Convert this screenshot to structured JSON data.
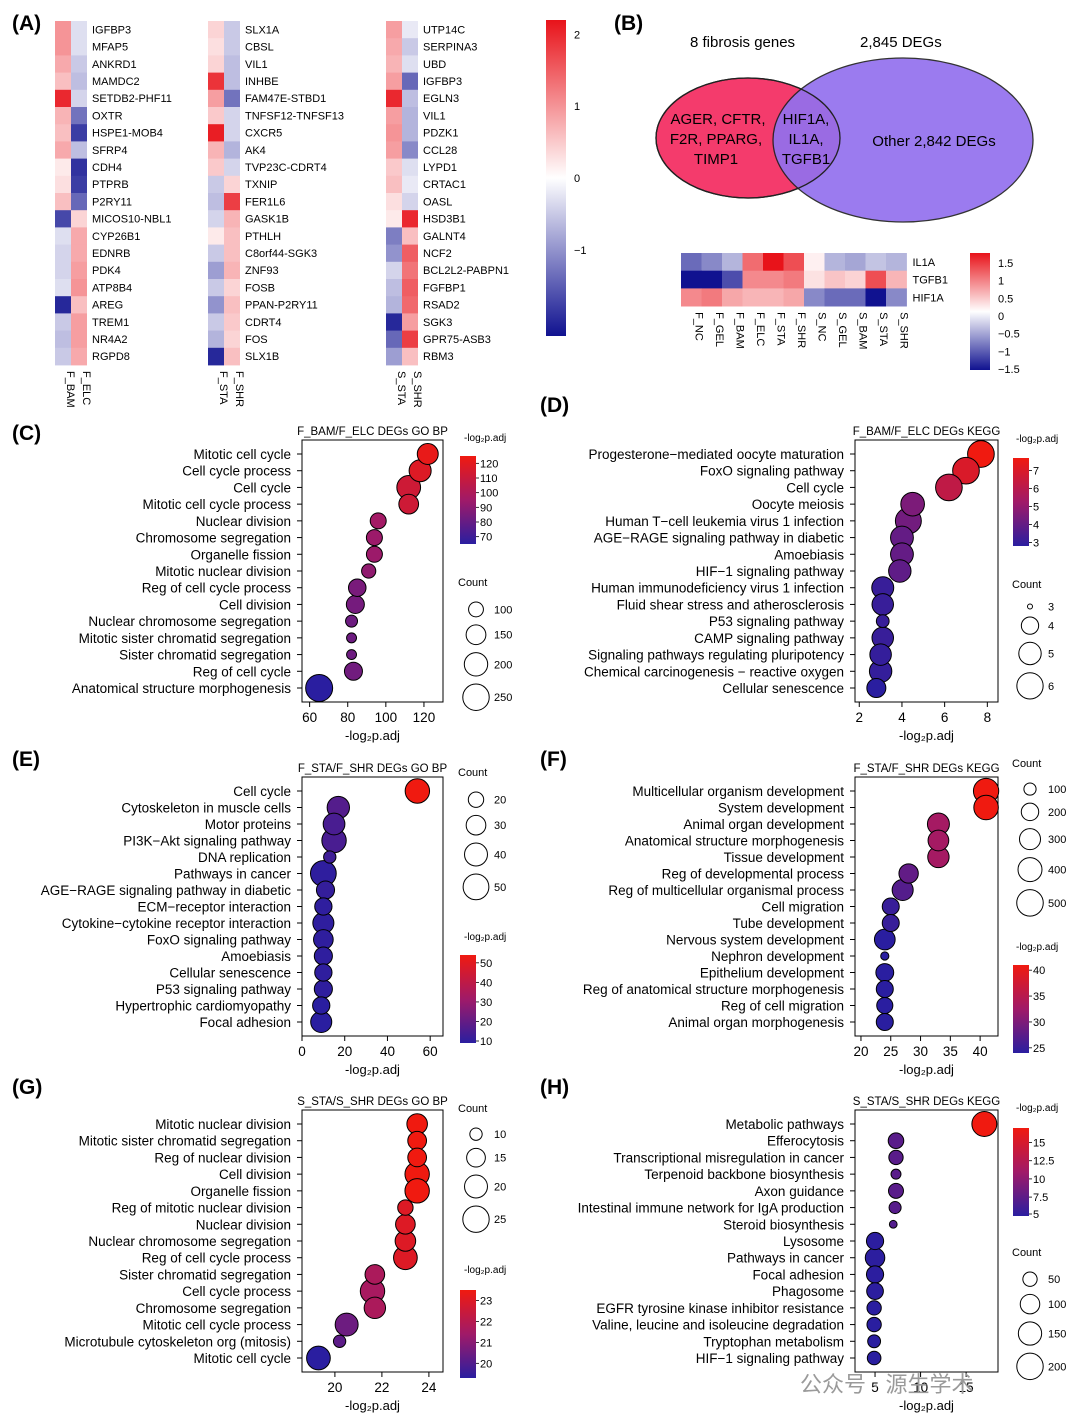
{
  "panel_letters": [
    "(A)",
    "(B)",
    "(C)",
    "(D)",
    "(E)",
    "(F)",
    "(G)",
    "(H)"
  ],
  "watermark": "公众号 · 源生学术",
  "heatmap_A": {
    "colorbar_ticks": [
      2,
      1,
      0,
      -1
    ],
    "colorbar_range": [
      -2.2,
      2.2
    ],
    "blocks": [
      {
        "columns": [
          "F_BAM",
          "F_ELC"
        ],
        "genes": [
          "IGFBP3",
          "MFAP5",
          "ANKRD1",
          "MAMDC2",
          "SETDB2-PHF11",
          "OXTR",
          "HSPE1-MOB4",
          "SFRP4",
          "CDH4",
          "PTPRB",
          "P2RY11",
          "MICOS10-NBL1",
          "CYP26B1",
          "EDNRB",
          "PDK4",
          "ATP8B4",
          "AREG",
          "TREM1",
          "NR4A2",
          "RGPD8"
        ],
        "values": [
          [
            1.0,
            -0.3
          ],
          [
            1.0,
            -0.3
          ],
          [
            0.8,
            -0.5
          ],
          [
            0.6,
            -0.6
          ],
          [
            2.0,
            -0.4
          ],
          [
            0.7,
            -1.3
          ],
          [
            0.6,
            -1.8
          ],
          [
            0.8,
            -0.6
          ],
          [
            0.2,
            -1.9
          ],
          [
            0.3,
            -1.8
          ],
          [
            0.6,
            -1.4
          ],
          [
            -1.7,
            0.4
          ],
          [
            -0.3,
            0.8
          ],
          [
            -0.4,
            0.8
          ],
          [
            -0.4,
            0.9
          ],
          [
            -0.3,
            1.0
          ],
          [
            -2.0,
            0.6
          ],
          [
            -0.5,
            0.9
          ],
          [
            -0.6,
            0.9
          ],
          [
            -0.5,
            0.8
          ]
        ]
      },
      {
        "columns": [
          "F_STA",
          "F_SHR"
        ],
        "genes": [
          "SLX1A",
          "CBSL",
          "VIL1",
          "INHBE",
          "FAM47E-STBD1",
          "TNFSF12-TNFSF13",
          "CXCR5",
          "AK4",
          "TVP23C-CDRT4",
          "TXNIP",
          "FER1L6",
          "GASK1B",
          "PTHLH",
          "C8orf44-SGK3",
          "ZNF93",
          "FOSB",
          "PPAN-P2RY11",
          "CDRT4",
          "FOS",
          "SLX1B"
        ],
        "values": [
          [
            0.4,
            -0.5
          ],
          [
            0.3,
            -0.5
          ],
          [
            0.4,
            -0.6
          ],
          [
            1.9,
            -0.6
          ],
          [
            0.9,
            -1.3
          ],
          [
            0.5,
            -0.4
          ],
          [
            2.1,
            -0.4
          ],
          [
            0.7,
            -0.7
          ],
          [
            0.5,
            -0.4
          ],
          [
            -0.5,
            0.4
          ],
          [
            -0.6,
            1.8
          ],
          [
            -0.4,
            0.7
          ],
          [
            0.2,
            0.6
          ],
          [
            -0.5,
            0.6
          ],
          [
            -0.9,
            0.7
          ],
          [
            -0.5,
            0.4
          ],
          [
            -1.0,
            0.6
          ],
          [
            -0.5,
            0.5
          ],
          [
            -0.7,
            0.4
          ],
          [
            -2.0,
            0.6
          ]
        ]
      },
      {
        "columns": [
          "S_STA",
          "S_SHR"
        ],
        "genes": [
          "UTP14C",
          "SERPINA3",
          "UBD",
          "IGFBP3",
          "EGLN3",
          "VIL1",
          "PDZK1",
          "CCL28",
          "LYPD1",
          "CRTAC1",
          "OASL",
          "HSD3B1",
          "GALNT4",
          "NCF2",
          "BCL2L2-PABPN1",
          "FGFBP1",
          "RSAD2",
          "SGK3",
          "GPR75-ASB3",
          "RBM3"
        ],
        "values": [
          [
            0.9,
            -0.2
          ],
          [
            0.8,
            -0.5
          ],
          [
            0.7,
            -0.3
          ],
          [
            0.9,
            -1.4
          ],
          [
            2.0,
            -0.6
          ],
          [
            0.9,
            -0.7
          ],
          [
            1.0,
            -0.7
          ],
          [
            0.9,
            -1.1
          ],
          [
            0.5,
            -0.3
          ],
          [
            0.6,
            -0.2
          ],
          [
            0.3,
            -0.4
          ],
          [
            0.2,
            2.0
          ],
          [
            -1.2,
            0.6
          ],
          [
            -1.0,
            1.5
          ],
          [
            -0.4,
            1.3
          ],
          [
            -0.6,
            1.5
          ],
          [
            -0.7,
            1.4
          ],
          [
            -2.0,
            0.9
          ],
          [
            -1.4,
            1.8
          ],
          [
            -0.9,
            0.6
          ]
        ]
      }
    ]
  },
  "venn_B": {
    "left_title": "8 fibrosis genes",
    "right_title": "2,845 DEGs",
    "left_only": [
      "AGER, CFTR,",
      "F2R, PPARG,",
      "TIMP1"
    ],
    "overlap": [
      "HIF1A,",
      "IL1A,",
      "TGFB1"
    ],
    "right_only": "Other 2,842 DEGs",
    "left_color": "#f43b6c",
    "right_color": "#9370ee",
    "overlap_text_color": "#3a6fd8"
  },
  "heatmap_B": {
    "rows": [
      "IL1A",
      "TGFB1",
      "HIF1A"
    ],
    "columns": [
      "F_NC",
      "F_GEL",
      "F_BAM",
      "F_ELC",
      "F_STA",
      "F_SHR",
      "S_NC",
      "S_GEL",
      "S_BAM",
      "S_STA",
      "S_SHR"
    ],
    "values": [
      [
        -1.0,
        -0.8,
        -0.5,
        1.0,
        1.6,
        1.2,
        0.1,
        -0.5,
        -0.6,
        -0.4,
        -0.5
      ],
      [
        -1.6,
        -1.6,
        -1.2,
        0.8,
        0.8,
        0.9,
        0.2,
        0.4,
        0.3,
        1.2,
        0.5
      ],
      [
        0.8,
        0.9,
        0.6,
        0.5,
        0.5,
        0.6,
        -0.8,
        -1.0,
        -1.0,
        -1.6,
        -0.8
      ]
    ],
    "colorbar_ticks": [
      "1.5",
      "1",
      "0.5",
      "0",
      "−0.5",
      "−1",
      "−1.5"
    ],
    "colorbar_range": [
      -1.6,
      1.6
    ]
  },
  "chart_data": [
    {
      "panel": "C",
      "type": "scatter",
      "title": "F_BAM/F_ELC DEGs GO BP",
      "xlabel": "-log₂p.adj",
      "xlim": [
        56,
        130
      ],
      "xticks": [
        60,
        80,
        100,
        120
      ],
      "terms": [
        "Mitotic cell cycle",
        "Cell cycle process",
        "Cell cycle",
        "Mitotic cell cycle process",
        "Nuclear division",
        "Chromosome segregation",
        "Organelle fission",
        "Mitotic nuclear division",
        "Reg of cell cycle process",
        "Cell division",
        "Nuclear chromosome segregation",
        "Mitotic sister chromatid segregation",
        "Sister chromatid segregation",
        "Reg of cell cycle",
        "Anatomical structure morphogenesis"
      ],
      "x": [
        122,
        118,
        112,
        112,
        96,
        94,
        94,
        91,
        85,
        84,
        82,
        82,
        82,
        83,
        65
      ],
      "count": [
        165,
        180,
        205,
        150,
        110,
        110,
        110,
        95,
        125,
        130,
        80,
        70,
        70,
        130,
        260
      ],
      "color_value": [
        122,
        118,
        112,
        112,
        96,
        94,
        94,
        91,
        85,
        84,
        82,
        82,
        82,
        83,
        65
      ],
      "color_label": "-log₂p.adj",
      "color_ticks": [
        120,
        110,
        100,
        90,
        80,
        70
      ],
      "color_range": [
        65,
        125
      ],
      "size_label": "Count",
      "size_ticks": [
        100,
        150,
        200,
        250
      ],
      "size_range": [
        60,
        260
      ]
    },
    {
      "panel": "D",
      "type": "scatter",
      "title": "F_BAM/F_ELC DEGs KEGG",
      "xlabel": "-log₂p.adj",
      "xlim": [
        1.8,
        8.5
      ],
      "xticks": [
        2,
        4,
        6,
        8
      ],
      "terms": [
        "Progesterone−mediated oocyte maturation",
        "FoxO signaling pathway",
        "Cell cycle",
        "Oocyte meiosis",
        "Human T−cell leukemia virus 1 infection",
        "AGE−RAGE signaling pathway in diabetic",
        "Amoebiasis",
        "HIF−1 signaling pathway",
        "Human immunodeficiency virus 1 infection",
        "Fluid shear stress and atherosclerosis",
        "P53 signaling pathway",
        "CAMP signaling pathway",
        "Signaling pathways regulating pluripotency",
        "Chemical carcinogenesis − reactive oxygen",
        "Cellular senescence"
      ],
      "x": [
        7.7,
        7.0,
        6.2,
        4.5,
        4.3,
        4.0,
        4.0,
        3.9,
        3.1,
        3.1,
        3.1,
        3.1,
        3.0,
        3.0,
        2.8
      ],
      "count": [
        6.1,
        6.1,
        6.1,
        5.3,
        5.9,
        5.1,
        5.1,
        5.0,
        4.9,
        4.8,
        3.4,
        4.8,
        4.8,
        5.0,
        4.3
      ],
      "color_value": [
        7.7,
        7.0,
        6.2,
        4.5,
        4.3,
        4.0,
        4.0,
        3.9,
        3.1,
        3.1,
        3.1,
        3.1,
        3.0,
        3.0,
        2.8
      ],
      "color_label": "-log₂p.adj",
      "color_ticks": [
        7,
        6,
        5,
        4,
        3
      ],
      "color_range": [
        2.8,
        7.7
      ],
      "size_label": "Count",
      "size_ticks": [
        3,
        4,
        5,
        6
      ],
      "size_range": [
        3,
        6.2
      ]
    },
    {
      "panel": "E",
      "type": "scatter",
      "title": "F_STA/F_SHR DEGs GO BP",
      "xlabel": "-log₂p.adj",
      "xlim": [
        0,
        66
      ],
      "xticks": [
        0,
        20,
        40,
        60
      ],
      "terms": [
        "Cell cycle",
        "Cytoskeleton in muscle cells",
        "Motor proteins",
        "PI3K−Akt signaling pathway",
        "DNA replication",
        "Pathways in cancer",
        "AGE−RAGE signaling pathway in diabetic",
        "ECM−receptor interaction",
        "Cytokine−cytokine receptor interaction",
        "FoxO signaling pathway",
        "Amoebiasis",
        "Cellular senescence",
        "P53 signaling pathway",
        "Hypertrophic cardiomyopathy",
        "Focal adhesion"
      ],
      "x": [
        54,
        17,
        15,
        15,
        13,
        10,
        11,
        10,
        10,
        10,
        10,
        10,
        10,
        9,
        9
      ],
      "count": [
        45,
        38,
        36,
        45,
        15,
        50,
        26,
        24,
        34,
        30,
        26,
        24,
        26,
        24,
        34
      ],
      "color_value": [
        54,
        17,
        15,
        15,
        13,
        10,
        11,
        10,
        10,
        10,
        10,
        10,
        10,
        9,
        9
      ],
      "color_label": "-log₂p.adj",
      "color_ticks": [
        50,
        40,
        30,
        20,
        10
      ],
      "color_range": [
        9,
        54
      ],
      "size_label": "Count",
      "size_ticks": [
        20,
        30,
        40,
        50
      ],
      "size_range": [
        10,
        55
      ]
    },
    {
      "panel": "F",
      "type": "scatter",
      "title": "F_STA/F_SHR DEGs KEGG",
      "xlabel": "-log₂p.adj",
      "xlim": [
        19,
        43
      ],
      "xticks": [
        20,
        25,
        30,
        35,
        40
      ],
      "terms": [
        "Multicellular organism development",
        "System development",
        "Animal organ development",
        "Anatomical structure morphogenesis",
        "Tissue development",
        "Reg of developmental process",
        "Reg of multicellular organismal process",
        "Cell migration",
        "Tube development",
        "Nervous system development",
        "Nephron development",
        "Epithelium development",
        "Reg of anatomical structure morphogenesis",
        "Reg of cell migration",
        "Animal organ morphogenesis"
      ],
      "x": [
        41,
        41,
        33,
        33,
        33,
        28,
        27,
        25,
        25,
        24,
        24,
        24,
        24,
        24,
        24
      ],
      "count": [
        450,
        420,
        330,
        290,
        310,
        250,
        300,
        190,
        190,
        290,
        60,
        210,
        190,
        170,
        190
      ],
      "color_value": [
        41,
        41,
        33,
        33,
        33,
        28,
        27,
        25,
        25,
        24,
        24,
        24,
        24,
        24,
        24
      ],
      "color_label": "-log₂p.adj",
      "color_ticks": [
        40,
        35,
        30,
        25
      ],
      "color_range": [
        24,
        41
      ],
      "size_label": "Count",
      "size_ticks": [
        100,
        200,
        300,
        400,
        500
      ],
      "size_range": [
        50,
        520
      ]
    },
    {
      "panel": "G",
      "type": "scatter",
      "title": "S_STA/S_SHR DEGs GO BP",
      "xlabel": "-log₂p.adj",
      "xlim": [
        18.6,
        24.6
      ],
      "xticks": [
        20,
        22,
        24
      ],
      "terms": [
        "Mitotic nuclear division",
        "Mitotic sister chromatid segregation",
        "Reg of nuclear division",
        "Cell division",
        "Organelle fission",
        "Reg of mitotic nuclear division",
        "Nuclear division",
        "Nuclear chromosome segregation",
        "Reg of cell cycle process",
        "Sister chromatid segregation",
        "Cell cycle process",
        "Chromosome segregation",
        "Mitotic cell cycle process",
        "Microtubule cytoskeleton org (mitosis)",
        "Mitotic cell cycle"
      ],
      "x": [
        23.5,
        23.5,
        23.5,
        23.5,
        23.5,
        23.0,
        23.0,
        23.0,
        23.0,
        21.7,
        21.6,
        21.7,
        20.5,
        20.2,
        19.3
      ],
      "count": [
        17,
        15,
        15,
        22,
        22,
        12,
        16,
        17,
        21,
        16,
        22,
        18,
        20,
        10,
        21
      ],
      "color_value": [
        23.5,
        23.5,
        23.5,
        23.5,
        23.5,
        23.0,
        23.0,
        23.0,
        23.0,
        21.7,
        21.6,
        21.7,
        20.5,
        20.2,
        19.3
      ],
      "color_label": "-log₂p.adj",
      "color_ticks": [
        23,
        22,
        21,
        20
      ],
      "color_range": [
        19.3,
        23.5
      ],
      "size_label": "Count",
      "size_ticks": [
        10,
        15,
        20,
        25
      ],
      "size_range": [
        8,
        26
      ]
    },
    {
      "panel": "H",
      "type": "scatter",
      "title": "S_STA/S_SHR DEGs KEGG",
      "xlabel": "-log₂p.adj",
      "xlim": [
        2.8,
        18.5
      ],
      "xticks": [
        5,
        10,
        15
      ],
      "terms": [
        "Metabolic pathways",
        "Efferocytosis",
        "Transcriptional misregulation in cancer",
        "Terpenoid backbone biosynthesis",
        "Axon guidance",
        "Intestinal immune network for IgA production",
        "Steroid biosynthesis",
        "Lysosome",
        "Pathways in cancer",
        "Focal adhesion",
        "Phagosome",
        "EGFR tyrosine kinase inhibitor resistance",
        "Valine, leucine and isoleucine degradation",
        "Tryptophan metabolism",
        "HIF−1 signaling pathway"
      ],
      "x": [
        17.0,
        7.3,
        7.3,
        7.3,
        7.3,
        7.2,
        7.0,
        5.0,
        5.0,
        5.0,
        5.0,
        4.9,
        4.9,
        4.9,
        4.9
      ],
      "count": [
        175,
        60,
        50,
        25,
        55,
        35,
        18,
        75,
        100,
        75,
        70,
        50,
        50,
        40,
        45
      ],
      "color_value": [
        17.0,
        7.3,
        7.3,
        7.3,
        7.3,
        7.2,
        7.0,
        5.0,
        5.0,
        5.0,
        5.0,
        4.9,
        4.9,
        4.9,
        4.9
      ],
      "color_label": "-log₂p.adj",
      "color_ticks": [
        15.0,
        12.5,
        10.0,
        7.5,
        5.0
      ],
      "color_range": [
        4.9,
        17.0
      ],
      "size_label": "Count",
      "size_ticks": [
        50,
        100,
        150,
        200
      ],
      "size_range": [
        15,
        210
      ]
    }
  ]
}
